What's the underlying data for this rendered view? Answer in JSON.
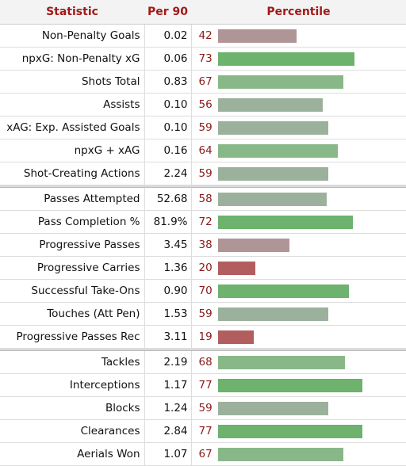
{
  "headers": {
    "statistic": "Statistic",
    "per90": "Per 90",
    "percentile": "Percentile"
  },
  "colors": {
    "strong_high": "#6db26d",
    "mid_high": "#88b888",
    "neutral": "#9cb19c",
    "mid_low": "#b09597",
    "strong_low": "#b25e5e",
    "header_text": "#a01a1a"
  },
  "groups": [
    [
      {
        "stat": "Non-Penalty Goals",
        "per90": "0.02",
        "percentile": "42"
      },
      {
        "stat": "npxG: Non-Penalty xG",
        "per90": "0.06",
        "percentile": "73"
      },
      {
        "stat": "Shots Total",
        "per90": "0.83",
        "percentile": "67"
      },
      {
        "stat": "Assists",
        "per90": "0.10",
        "percentile": "56"
      },
      {
        "stat": "xAG: Exp. Assisted Goals",
        "per90": "0.10",
        "percentile": "59"
      },
      {
        "stat": "npxG + xAG",
        "per90": "0.16",
        "percentile": "64"
      },
      {
        "stat": "Shot-Creating Actions",
        "per90": "2.24",
        "percentile": "59"
      }
    ],
    [
      {
        "stat": "Passes Attempted",
        "per90": "52.68",
        "percentile": "58"
      },
      {
        "stat": "Pass Completion %",
        "per90": "81.9%",
        "percentile": "72"
      },
      {
        "stat": "Progressive Passes",
        "per90": "3.45",
        "percentile": "38"
      },
      {
        "stat": "Progressive Carries",
        "per90": "1.36",
        "percentile": "20"
      },
      {
        "stat": "Successful Take-Ons",
        "per90": "0.90",
        "percentile": "70"
      },
      {
        "stat": "Touches (Att Pen)",
        "per90": "1.53",
        "percentile": "59"
      },
      {
        "stat": "Progressive Passes Rec",
        "per90": "3.11",
        "percentile": "19"
      }
    ],
    [
      {
        "stat": "Tackles",
        "per90": "2.19",
        "percentile": "68"
      },
      {
        "stat": "Interceptions",
        "per90": "1.17",
        "percentile": "77"
      },
      {
        "stat": "Blocks",
        "per90": "1.24",
        "percentile": "59"
      },
      {
        "stat": "Clearances",
        "per90": "2.84",
        "percentile": "77"
      },
      {
        "stat": "Aerials Won",
        "per90": "1.07",
        "percentile": "67"
      }
    ]
  ]
}
